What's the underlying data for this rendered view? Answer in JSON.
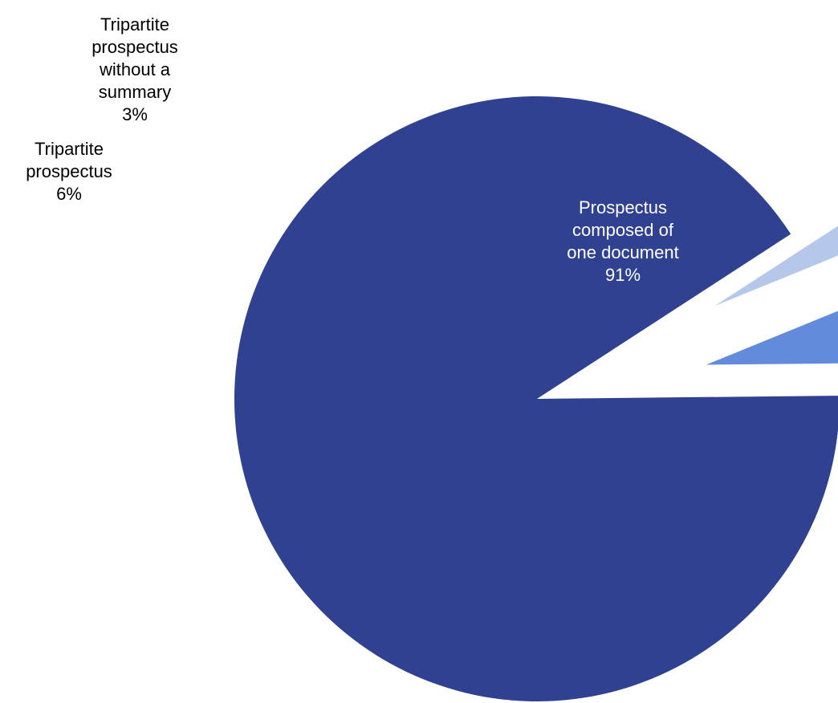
{
  "chart_data": {
    "type": "pie",
    "start_angle_deg": -33,
    "direction": "counterclockwise",
    "slices": [
      {
        "label_lines": [
          "Prospectus",
          "composed of",
          "one document",
          "91%"
        ],
        "value": 91,
        "color": "#2f4190",
        "label_color": "#ffffff",
        "exploded": false
      },
      {
        "label_lines": [
          "Tripartite",
          "prospectus",
          "6%"
        ],
        "value": 6,
        "color": "#638bdb",
        "label_color": "#000000",
        "exploded": true
      },
      {
        "label_lines": [
          "Tripartite",
          "prospectus",
          "without a",
          "summary",
          "3%"
        ],
        "value": 3,
        "color": "#b5c8ea",
        "label_color": "#000000",
        "exploded": true
      }
    ]
  }
}
